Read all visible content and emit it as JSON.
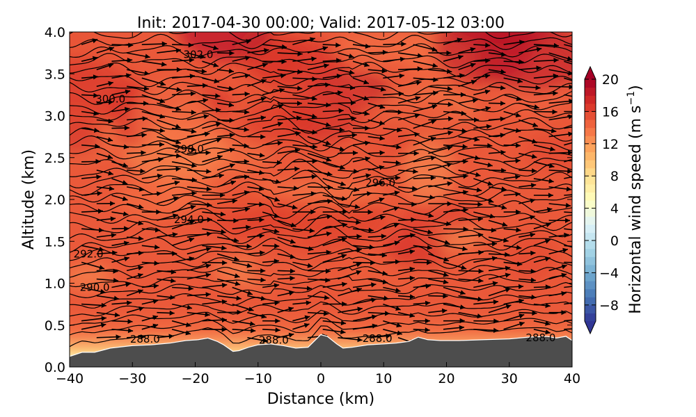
{
  "chart_data": {
    "type": "contour",
    "title": "Init: 2017-04-30 00:00; Valid: 2017-05-12 03:00",
    "xlabel": "Distance (km)",
    "ylabel": "Altitude (km)",
    "xlim": [
      -40,
      40
    ],
    "ylim": [
      0,
      4
    ],
    "xticks": [
      "−40",
      "−30",
      "−20",
      "−10",
      "0",
      "10",
      "20",
      "30",
      "40"
    ],
    "yticks": [
      "0.0",
      "0.5",
      "1.0",
      "1.5",
      "2.0",
      "2.5",
      "3.0",
      "3.5",
      "4.0"
    ],
    "xtick_values": [
      -40,
      -30,
      -20,
      -10,
      0,
      10,
      20,
      30,
      40
    ],
    "ytick_values": [
      0,
      0.5,
      1,
      1.5,
      2,
      2.5,
      3,
      3.5,
      4
    ],
    "colorbar": {
      "label": "Horizontal wind speed (m s",
      "label_exponent": "−1",
      "label_suffix": ")",
      "range": [
        -10,
        20
      ],
      "ticks": [
        "20",
        "16",
        "12",
        "8",
        "4",
        "0",
        "−4",
        "−8"
      ],
      "tick_values": [
        20,
        16,
        12,
        8,
        4,
        0,
        -4,
        -8
      ],
      "extend": "both",
      "colormap": "RdYlBu_r"
    },
    "contour_labels": [
      {
        "text": "302.0",
        "x": -19.5,
        "y": 3.73
      },
      {
        "text": "300.0",
        "x": -33.5,
        "y": 3.2
      },
      {
        "text": "298.0",
        "x": -21.0,
        "y": 2.6
      },
      {
        "text": "296.0",
        "x": 9.5,
        "y": 2.2
      },
      {
        "text": "294.0",
        "x": -21.0,
        "y": 1.76
      },
      {
        "text": "292.0",
        "x": -37.0,
        "y": 1.35
      },
      {
        "text": "290.0",
        "x": -36.0,
        "y": 0.95
      },
      {
        "text": "288.0",
        "x": -28.0,
        "y": 0.33
      },
      {
        "text": "288.0",
        "x": -7.5,
        "y": 0.32
      },
      {
        "text": "288.0",
        "x": 9.0,
        "y": 0.34
      },
      {
        "text": "288.0",
        "x": 35.0,
        "y": 0.35
      }
    ],
    "terrain": [
      {
        "x": -40,
        "y": 0.12
      },
      {
        "x": -38,
        "y": 0.17
      },
      {
        "x": -36,
        "y": 0.17
      },
      {
        "x": -33.5,
        "y": 0.22
      },
      {
        "x": -30,
        "y": 0.25
      },
      {
        "x": -27,
        "y": 0.26
      },
      {
        "x": -24,
        "y": 0.28
      },
      {
        "x": -21.5,
        "y": 0.31
      },
      {
        "x": -19.5,
        "y": 0.32
      },
      {
        "x": -18,
        "y": 0.34
      },
      {
        "x": -16.5,
        "y": 0.3
      },
      {
        "x": -15.5,
        "y": 0.26
      },
      {
        "x": -14,
        "y": 0.18
      },
      {
        "x": -13,
        "y": 0.19
      },
      {
        "x": -11.5,
        "y": 0.23
      },
      {
        "x": -10,
        "y": 0.26
      },
      {
        "x": -8,
        "y": 0.27
      },
      {
        "x": -6,
        "y": 0.25
      },
      {
        "x": -4,
        "y": 0.22
      },
      {
        "x": -2,
        "y": 0.23
      },
      {
        "x": 0,
        "y": 0.38
      },
      {
        "x": 1,
        "y": 0.36
      },
      {
        "x": 2.5,
        "y": 0.27
      },
      {
        "x": 3.5,
        "y": 0.22
      },
      {
        "x": 5,
        "y": 0.23
      },
      {
        "x": 7.5,
        "y": 0.26
      },
      {
        "x": 10,
        "y": 0.27
      },
      {
        "x": 12,
        "y": 0.28
      },
      {
        "x": 14,
        "y": 0.3
      },
      {
        "x": 15.5,
        "y": 0.35
      },
      {
        "x": 17,
        "y": 0.32
      },
      {
        "x": 19,
        "y": 0.31
      },
      {
        "x": 22,
        "y": 0.31
      },
      {
        "x": 26,
        "y": 0.32
      },
      {
        "x": 30,
        "y": 0.33
      },
      {
        "x": 33,
        "y": 0.35
      },
      {
        "x": 36,
        "y": 0.36
      },
      {
        "x": 37.5,
        "y": 0.34
      },
      {
        "x": 39,
        "y": 0.36
      },
      {
        "x": 40,
        "y": 0.31
      }
    ],
    "wind_range": [
      12,
      18
    ],
    "colors": {
      "terrain": "#4d4d4d",
      "isentrope": "#000000",
      "arrow": "#000000"
    }
  }
}
